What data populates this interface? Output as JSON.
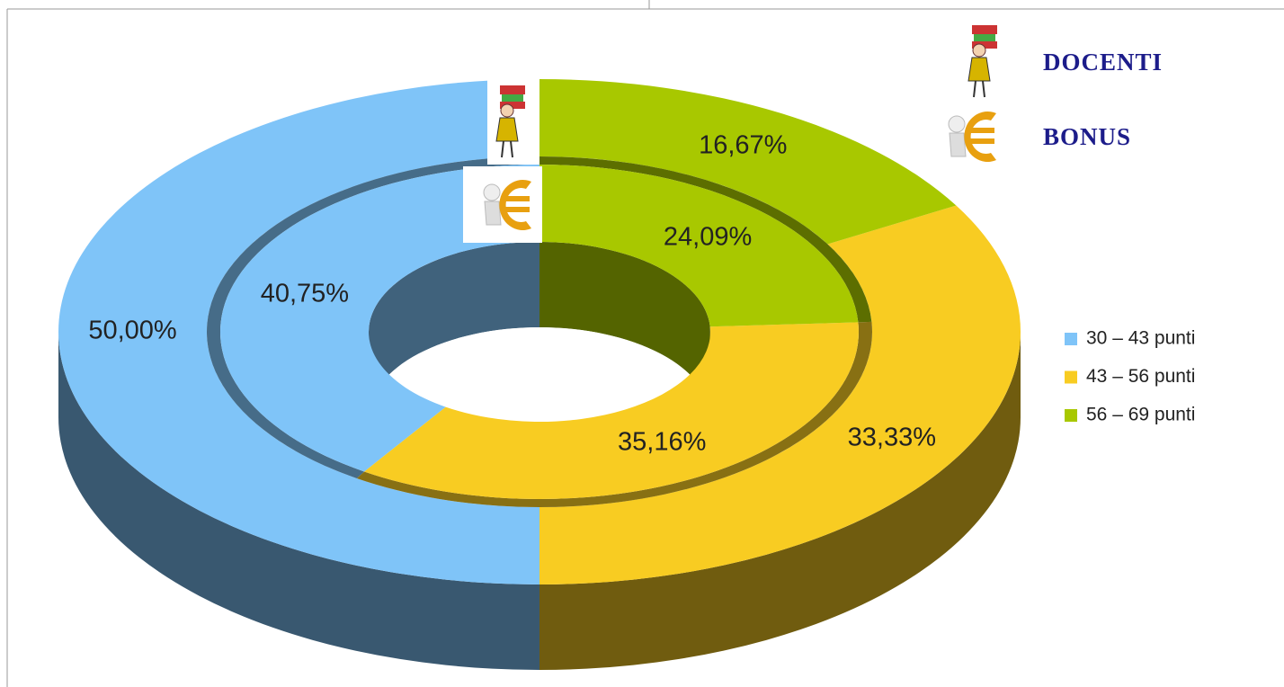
{
  "chart_data": {
    "type": "donut",
    "categories": [
      "30 – 43 punti",
      "43 – 56 punti",
      "56 – 69 punti"
    ],
    "colors": [
      "#7fc4f8",
      "#f8cc22",
      "#a8c800"
    ],
    "series": [
      {
        "name": "DOCENTI",
        "values": [
          50.0,
          33.33,
          16.67
        ],
        "value_labels": [
          "50,00%",
          "33,33%",
          "16,67%"
        ]
      },
      {
        "name": "BONUS",
        "values": [
          40.75,
          35.16,
          24.09
        ],
        "value_labels": [
          "40,75%",
          "35,16%",
          "24,09%"
        ]
      }
    ]
  }
}
